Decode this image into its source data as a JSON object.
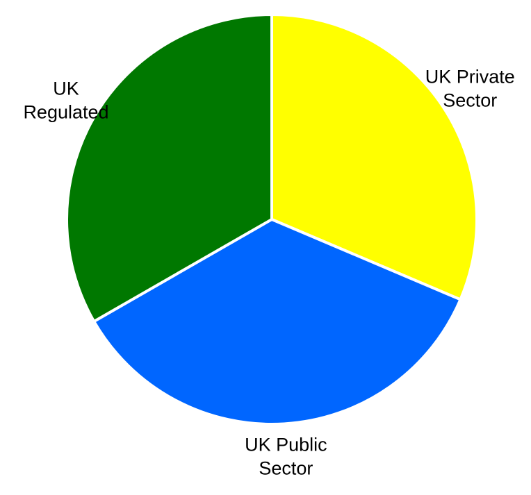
{
  "chart_data": {
    "type": "pie",
    "categories": [
      "UK Private Sector",
      "UK Public Sector",
      "UK Regulated"
    ],
    "values": [
      31.4,
      35.3,
      33.3
    ],
    "slice_labels": [
      [
        "UK Private",
        "Sector"
      ],
      [
        "UK Public",
        "Sector"
      ],
      [
        "UK",
        "Regulated"
      ]
    ],
    "colors": [
      "#ffff00",
      "#0066ff",
      "#007800"
    ],
    "start_angle_deg": 0,
    "direction": "clockwise",
    "title": "",
    "legend": "none"
  }
}
